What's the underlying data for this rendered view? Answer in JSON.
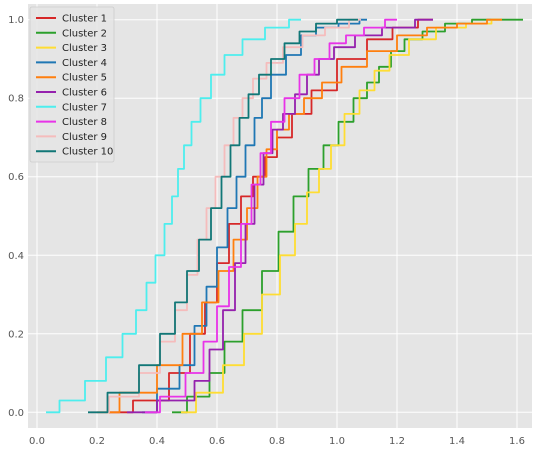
{
  "chart_data": {
    "type": "line",
    "title": "",
    "xlabel": "",
    "ylabel": "",
    "xlim": [
      -0.03,
      1.65
    ],
    "ylim": [
      -0.04,
      1.04
    ],
    "x_ticks": [
      0.0,
      0.2,
      0.4,
      0.6,
      0.8,
      1.0,
      1.2,
      1.4,
      1.6
    ],
    "x_tick_labels": [
      "0.0",
      "0.2",
      "0.4",
      "0.6",
      "0.8",
      "1.0",
      "1.2",
      "1.4",
      "1.6"
    ],
    "y_ticks": [
      0.0,
      0.2,
      0.4,
      0.6,
      0.8,
      1.0
    ],
    "y_tick_labels": [
      "0.0",
      "0.2",
      "0.4",
      "0.6",
      "0.8",
      "1.0"
    ],
    "grid": true,
    "legend_position": "top-left",
    "series": [
      {
        "name": "Cluster 1",
        "color": "#d62728",
        "x": [
          0.24,
          0.4,
          0.48,
          0.54,
          0.58,
          0.62,
          0.66,
          0.7,
          0.74,
          0.78,
          0.82,
          0.88,
          0.95,
          1.05,
          1.15,
          1.22,
          1.32
        ],
        "y": [
          0.0,
          0.03,
          0.1,
          0.2,
          0.28,
          0.38,
          0.48,
          0.55,
          0.6,
          0.65,
          0.7,
          0.76,
          0.82,
          0.9,
          0.95,
          0.98,
          1.0
        ]
      },
      {
        "name": "Cluster 2",
        "color": "#2ca02c",
        "x": [
          0.45,
          0.55,
          0.6,
          0.65,
          0.72,
          0.78,
          0.83,
          0.88,
          0.93,
          0.98,
          1.03,
          1.08,
          1.12,
          1.16,
          1.2,
          1.25,
          1.32,
          1.4,
          1.5,
          1.62
        ],
        "y": [
          0.0,
          0.04,
          0.1,
          0.18,
          0.26,
          0.36,
          0.46,
          0.55,
          0.62,
          0.68,
          0.74,
          0.8,
          0.84,
          0.88,
          0.92,
          0.95,
          0.97,
          0.99,
          1.0,
          1.0
        ]
      },
      {
        "name": "Cluster 3",
        "color": "#ffdd33",
        "x": [
          0.48,
          0.58,
          0.66,
          0.72,
          0.78,
          0.84,
          0.88,
          0.92,
          0.96,
          1.0,
          1.05,
          1.1,
          1.15,
          1.2,
          1.28,
          1.38,
          1.48,
          1.55
        ],
        "y": [
          0.0,
          0.05,
          0.12,
          0.2,
          0.3,
          0.4,
          0.48,
          0.56,
          0.62,
          0.68,
          0.76,
          0.82,
          0.87,
          0.91,
          0.95,
          0.98,
          0.99,
          1.0
        ]
      },
      {
        "name": "Cluster 4",
        "color": "#1f77b4",
        "x": [
          0.35,
          0.45,
          0.5,
          0.55,
          0.58,
          0.62,
          0.65,
          0.68,
          0.71,
          0.74,
          0.76,
          0.8,
          0.86,
          0.9,
          0.96,
          1.05,
          1.1
        ],
        "y": [
          0.0,
          0.06,
          0.12,
          0.22,
          0.32,
          0.42,
          0.52,
          0.6,
          0.68,
          0.75,
          0.8,
          0.86,
          0.91,
          0.96,
          0.98,
          0.99,
          1.0
        ]
      },
      {
        "name": "Cluster 5",
        "color": "#ff7f0e",
        "x": [
          0.2,
          0.35,
          0.45,
          0.52,
          0.58,
          0.63,
          0.68,
          0.72,
          0.75,
          0.78,
          0.82,
          0.86,
          0.92,
          0.98,
          1.05,
          1.15,
          1.25,
          1.35,
          1.45,
          1.55
        ],
        "y": [
          0.0,
          0.05,
          0.12,
          0.2,
          0.28,
          0.36,
          0.44,
          0.52,
          0.6,
          0.67,
          0.72,
          0.76,
          0.8,
          0.84,
          0.88,
          0.92,
          0.96,
          0.98,
          0.99,
          1.0
        ]
      },
      {
        "name": "Cluster 6",
        "color": "#9521ad",
        "x": [
          0.3,
          0.5,
          0.55,
          0.6,
          0.64,
          0.68,
          0.71,
          0.74,
          0.77,
          0.8,
          0.84,
          0.88,
          0.92,
          0.96,
          1.02,
          1.1,
          1.2,
          1.32
        ],
        "y": [
          0.0,
          0.03,
          0.08,
          0.16,
          0.26,
          0.38,
          0.48,
          0.58,
          0.66,
          0.72,
          0.76,
          0.81,
          0.86,
          0.9,
          0.93,
          0.96,
          0.98,
          1.0
        ]
      },
      {
        "name": "Cluster 7",
        "color": "#4deeee",
        "x": [
          0.03,
          0.12,
          0.2,
          0.26,
          0.31,
          0.35,
          0.38,
          0.41,
          0.44,
          0.46,
          0.48,
          0.5,
          0.53,
          0.56,
          0.6,
          0.65,
          0.72,
          0.8,
          0.88
        ],
        "y": [
          0.0,
          0.03,
          0.08,
          0.14,
          0.2,
          0.26,
          0.33,
          0.4,
          0.48,
          0.55,
          0.62,
          0.68,
          0.74,
          0.8,
          0.86,
          0.91,
          0.95,
          0.98,
          1.0
        ]
      },
      {
        "name": "Cluster 8",
        "color": "#e833e8",
        "x": [
          0.36,
          0.46,
          0.53,
          0.58,
          0.62,
          0.66,
          0.7,
          0.73,
          0.76,
          0.8,
          0.85,
          0.9,
          0.95,
          1.0,
          1.06,
          1.12,
          1.2
        ],
        "y": [
          0.0,
          0.04,
          0.1,
          0.18,
          0.27,
          0.37,
          0.48,
          0.58,
          0.66,
          0.74,
          0.8,
          0.86,
          0.9,
          0.94,
          0.96,
          0.98,
          1.0
        ]
      },
      {
        "name": "Cluster 9",
        "color": "#f5bcbc",
        "x": [
          0.18,
          0.3,
          0.38,
          0.44,
          0.48,
          0.52,
          0.55,
          0.58,
          0.61,
          0.64,
          0.67,
          0.7,
          0.74,
          0.79,
          0.85,
          0.92,
          1.0,
          1.08
        ],
        "y": [
          0.0,
          0.04,
          0.1,
          0.18,
          0.26,
          0.35,
          0.44,
          0.52,
          0.6,
          0.68,
          0.75,
          0.8,
          0.85,
          0.89,
          0.93,
          0.96,
          0.98,
          1.0
        ]
      },
      {
        "name": "Cluster 10",
        "color": "#117777",
        "x": [
          0.17,
          0.3,
          0.38,
          0.44,
          0.48,
          0.52,
          0.56,
          0.6,
          0.63,
          0.66,
          0.69,
          0.72,
          0.76,
          0.8,
          0.85,
          0.9,
          0.96,
          1.04,
          1.07
        ],
        "y": [
          0.0,
          0.05,
          0.12,
          0.2,
          0.28,
          0.36,
          0.44,
          0.52,
          0.6,
          0.68,
          0.75,
          0.81,
          0.86,
          0.9,
          0.94,
          0.97,
          0.99,
          1.0,
          1.0
        ]
      }
    ]
  }
}
